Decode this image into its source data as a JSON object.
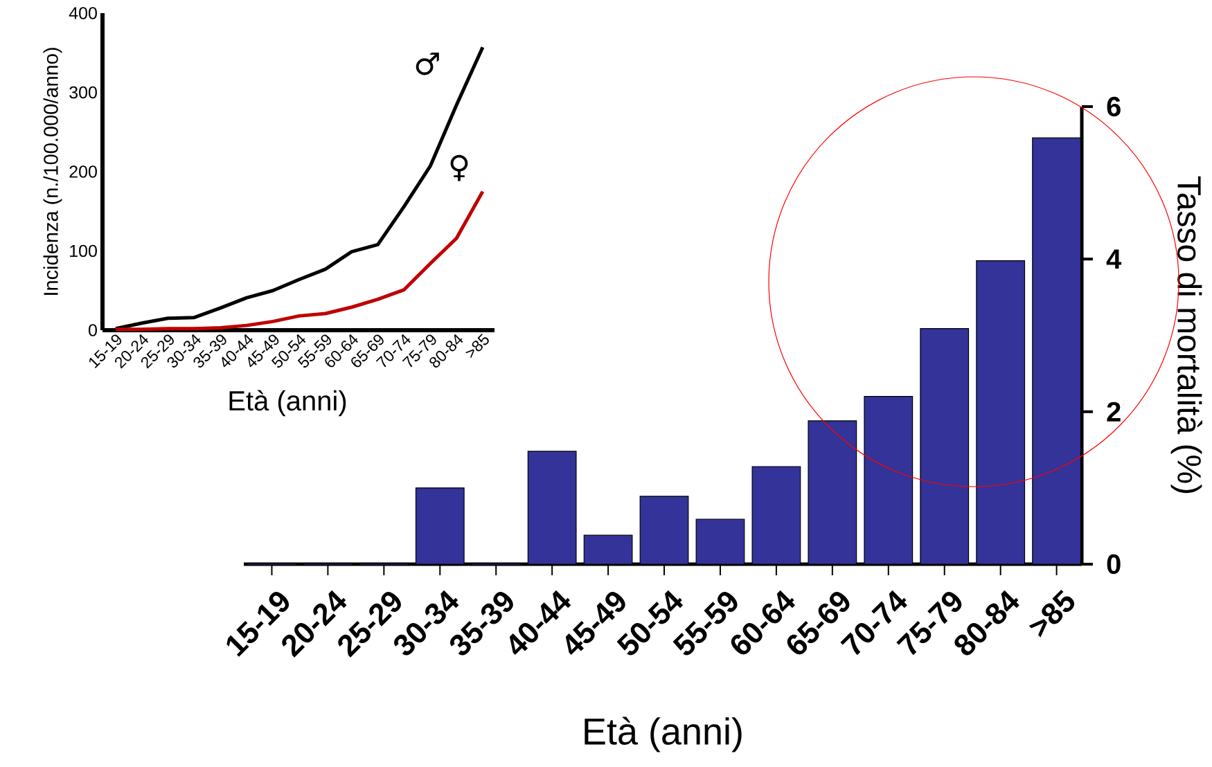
{
  "chart_data": [
    {
      "type": "line",
      "ylabel": "Incidenza (n./100.000/anno)",
      "xlabel": "Età (anni)",
      "categories": [
        "15-19",
        "20-24",
        "25-29",
        "30-34",
        "35-39",
        "40-44",
        "45-49",
        "50-54",
        "55-59",
        "60-64",
        "65-69",
        "70-74",
        "75-79",
        "80-84",
        ">85"
      ],
      "series": [
        {
          "name": "♂",
          "color": "#000000",
          "values": [
            2,
            9,
            15,
            16,
            28,
            41,
            50,
            64,
            77,
            99,
            108,
            156,
            207,
            284,
            357
          ]
        },
        {
          "name": "♀",
          "color": "#c00000",
          "values": [
            1,
            1,
            2,
            2,
            3,
            6,
            11,
            18,
            21,
            29,
            39,
            51,
            84,
            116,
            175
          ]
        }
      ],
      "ylim": [
        0,
        400
      ],
      "yticks": [
        0,
        100,
        200,
        300,
        400
      ]
    },
    {
      "type": "bar",
      "ylabel": "Tasso di mortalità (%)",
      "xlabel": "Età (anni)",
      "categories": [
        "15-19",
        "20-24",
        "25-29",
        "30-34",
        "35-39",
        "40-44",
        "45-49",
        "50-54",
        "55-59",
        "60-64",
        "65-69",
        "70-74",
        "75-79",
        "80-84",
        ">85"
      ],
      "values": [
        0,
        0,
        0,
        1.0,
        0,
        1.48,
        0.38,
        0.89,
        0.59,
        1.28,
        1.88,
        2.2,
        3.09,
        3.98,
        5.59
      ],
      "color": "#333399",
      "ylim": [
        0,
        6
      ],
      "yticks": [
        0,
        2,
        4,
        6
      ]
    }
  ]
}
